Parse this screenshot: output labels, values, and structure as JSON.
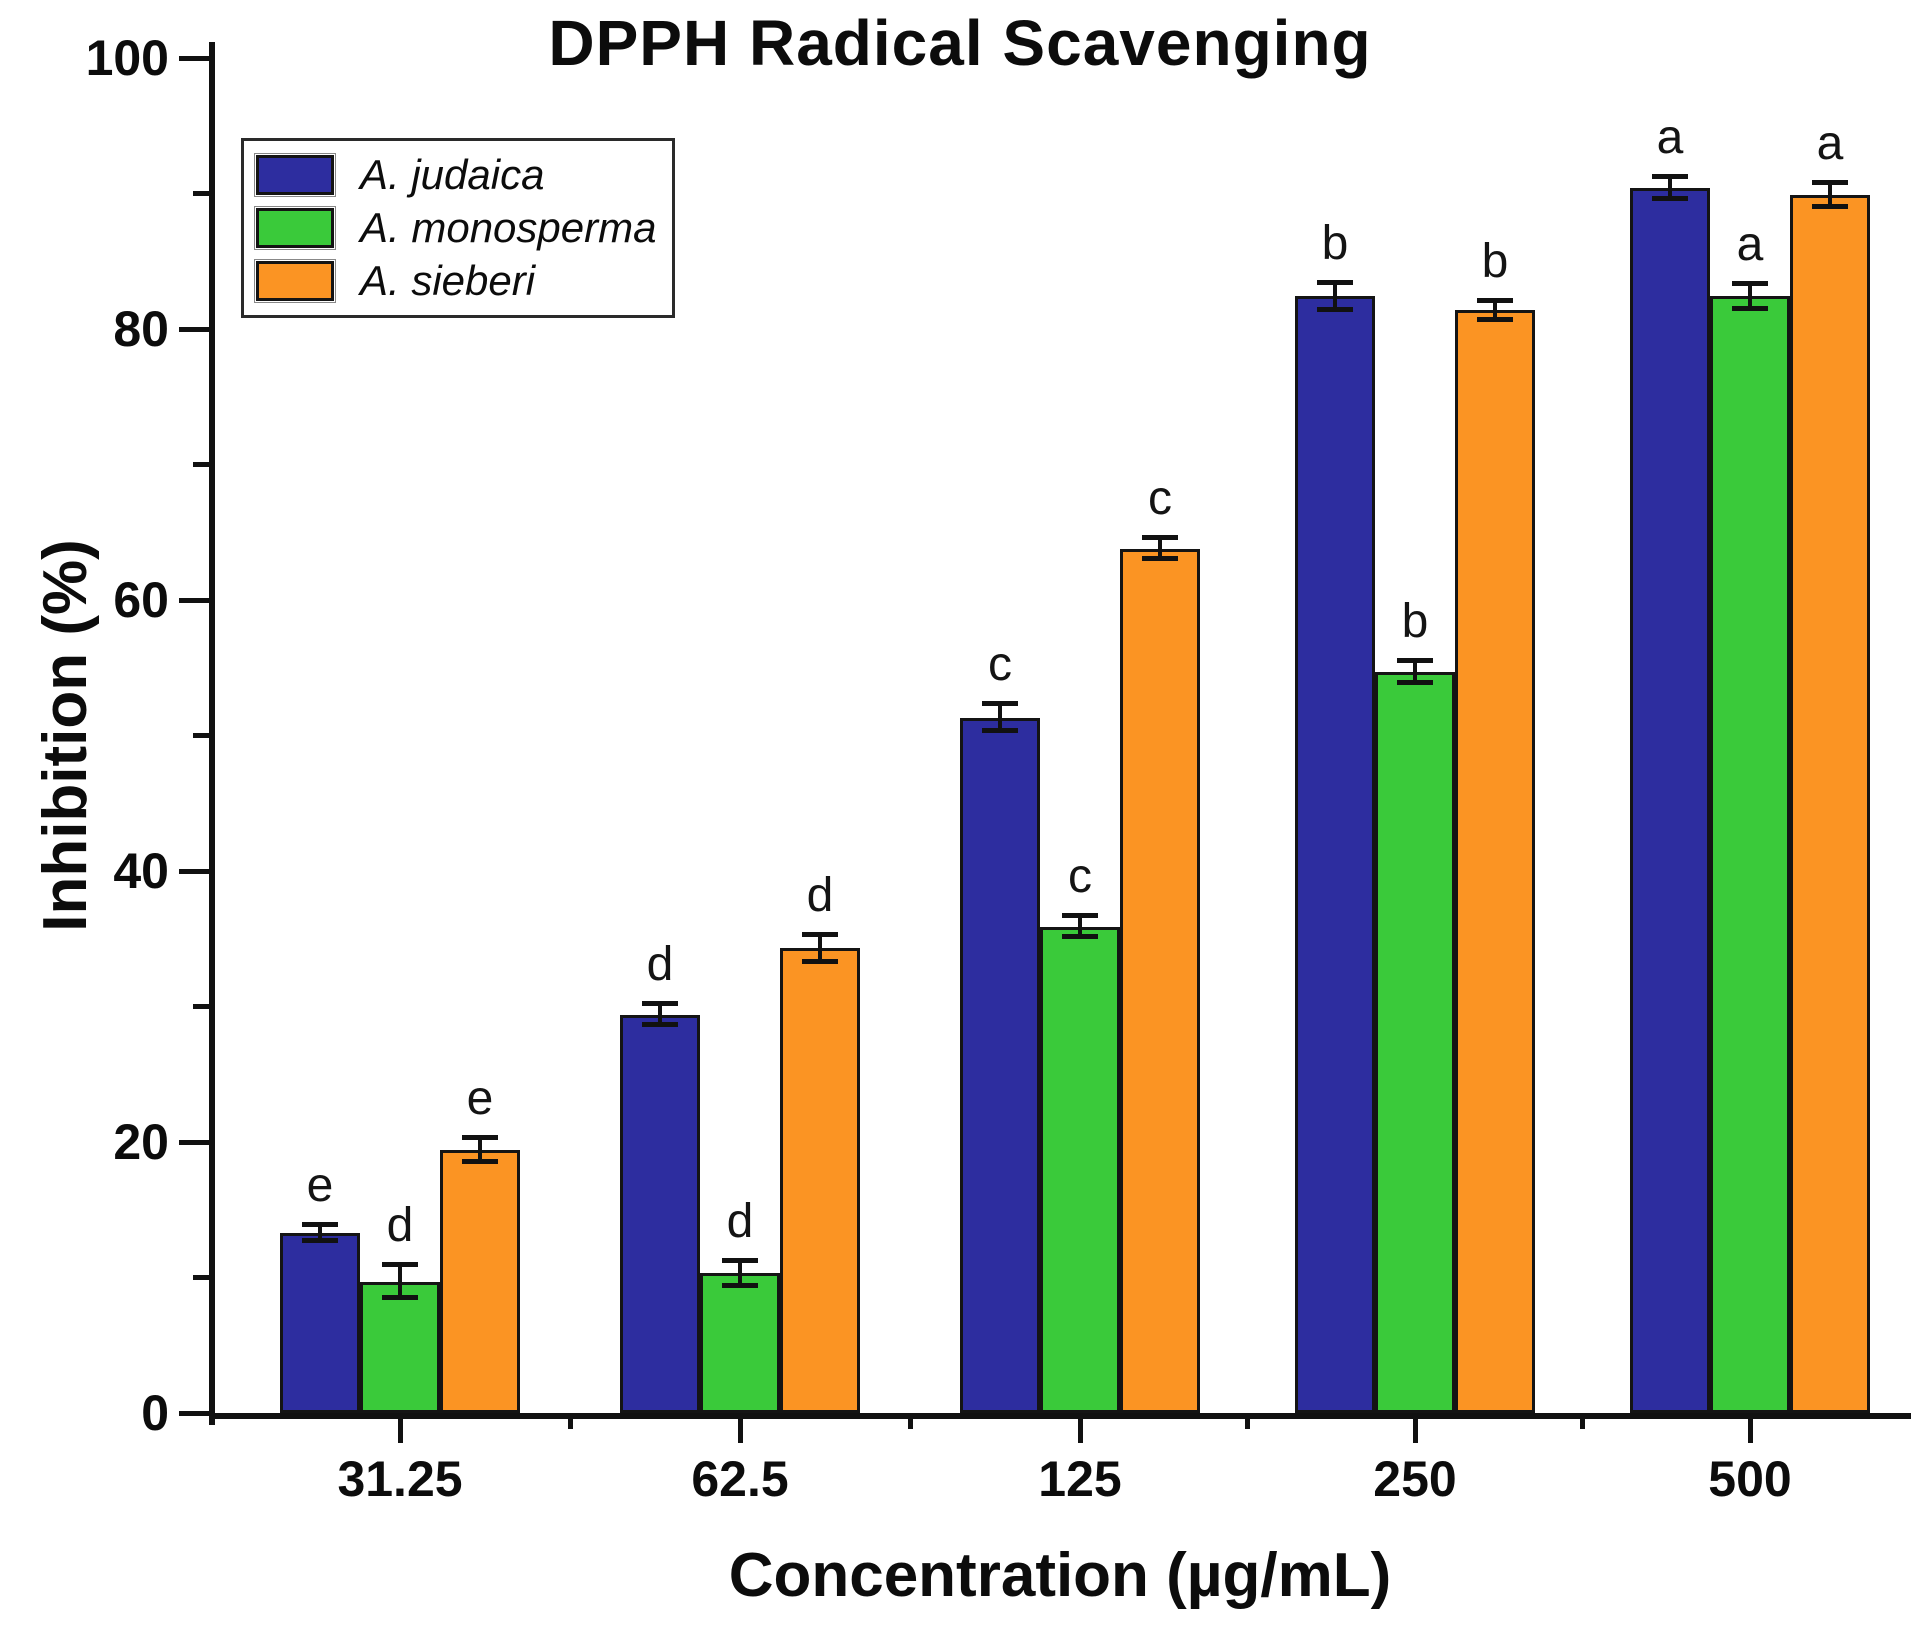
{
  "chart_data": {
    "type": "bar",
    "title": "DPPH Radical Scavenging",
    "xlabel": "Concentration (µg/mL)",
    "ylabel": "Inhibition (%)",
    "ylim": [
      0,
      100
    ],
    "y_major_ticks": [
      0,
      20,
      40,
      60,
      80,
      100
    ],
    "y_minor_ticks": [
      10,
      30,
      50,
      70,
      90
    ],
    "grid": false,
    "legend_position": "top-left",
    "bar_edge_color": "#141414",
    "error_bar_color": "#111111",
    "categories": [
      "31.25",
      "62.5",
      "125",
      "250",
      "500"
    ],
    "series": [
      {
        "name": "A. judaica",
        "color": "#2d2d9f",
        "values": [
          13.3,
          29.4,
          51.3,
          82.4,
          90.4
        ],
        "errors": [
          0.6,
          0.8,
          1.0,
          1.0,
          0.8
        ],
        "letters": [
          "e",
          "d",
          "c",
          "b",
          "a"
        ]
      },
      {
        "name": "A. monosperma",
        "color": "#3aca3a",
        "values": [
          9.7,
          10.3,
          35.9,
          54.7,
          82.4
        ],
        "errors": [
          1.2,
          0.9,
          0.8,
          0.8,
          0.9
        ],
        "letters": [
          "d",
          "d",
          "c",
          "b",
          "a"
        ]
      },
      {
        "name": "A. sieberi",
        "color": "#fb9423",
        "values": [
          19.4,
          34.3,
          63.8,
          81.4,
          89.9
        ],
        "errors": [
          0.9,
          1.0,
          0.8,
          0.7,
          0.9
        ],
        "letters": [
          "e",
          "d",
          "c",
          "b",
          "a"
        ]
      }
    ]
  }
}
